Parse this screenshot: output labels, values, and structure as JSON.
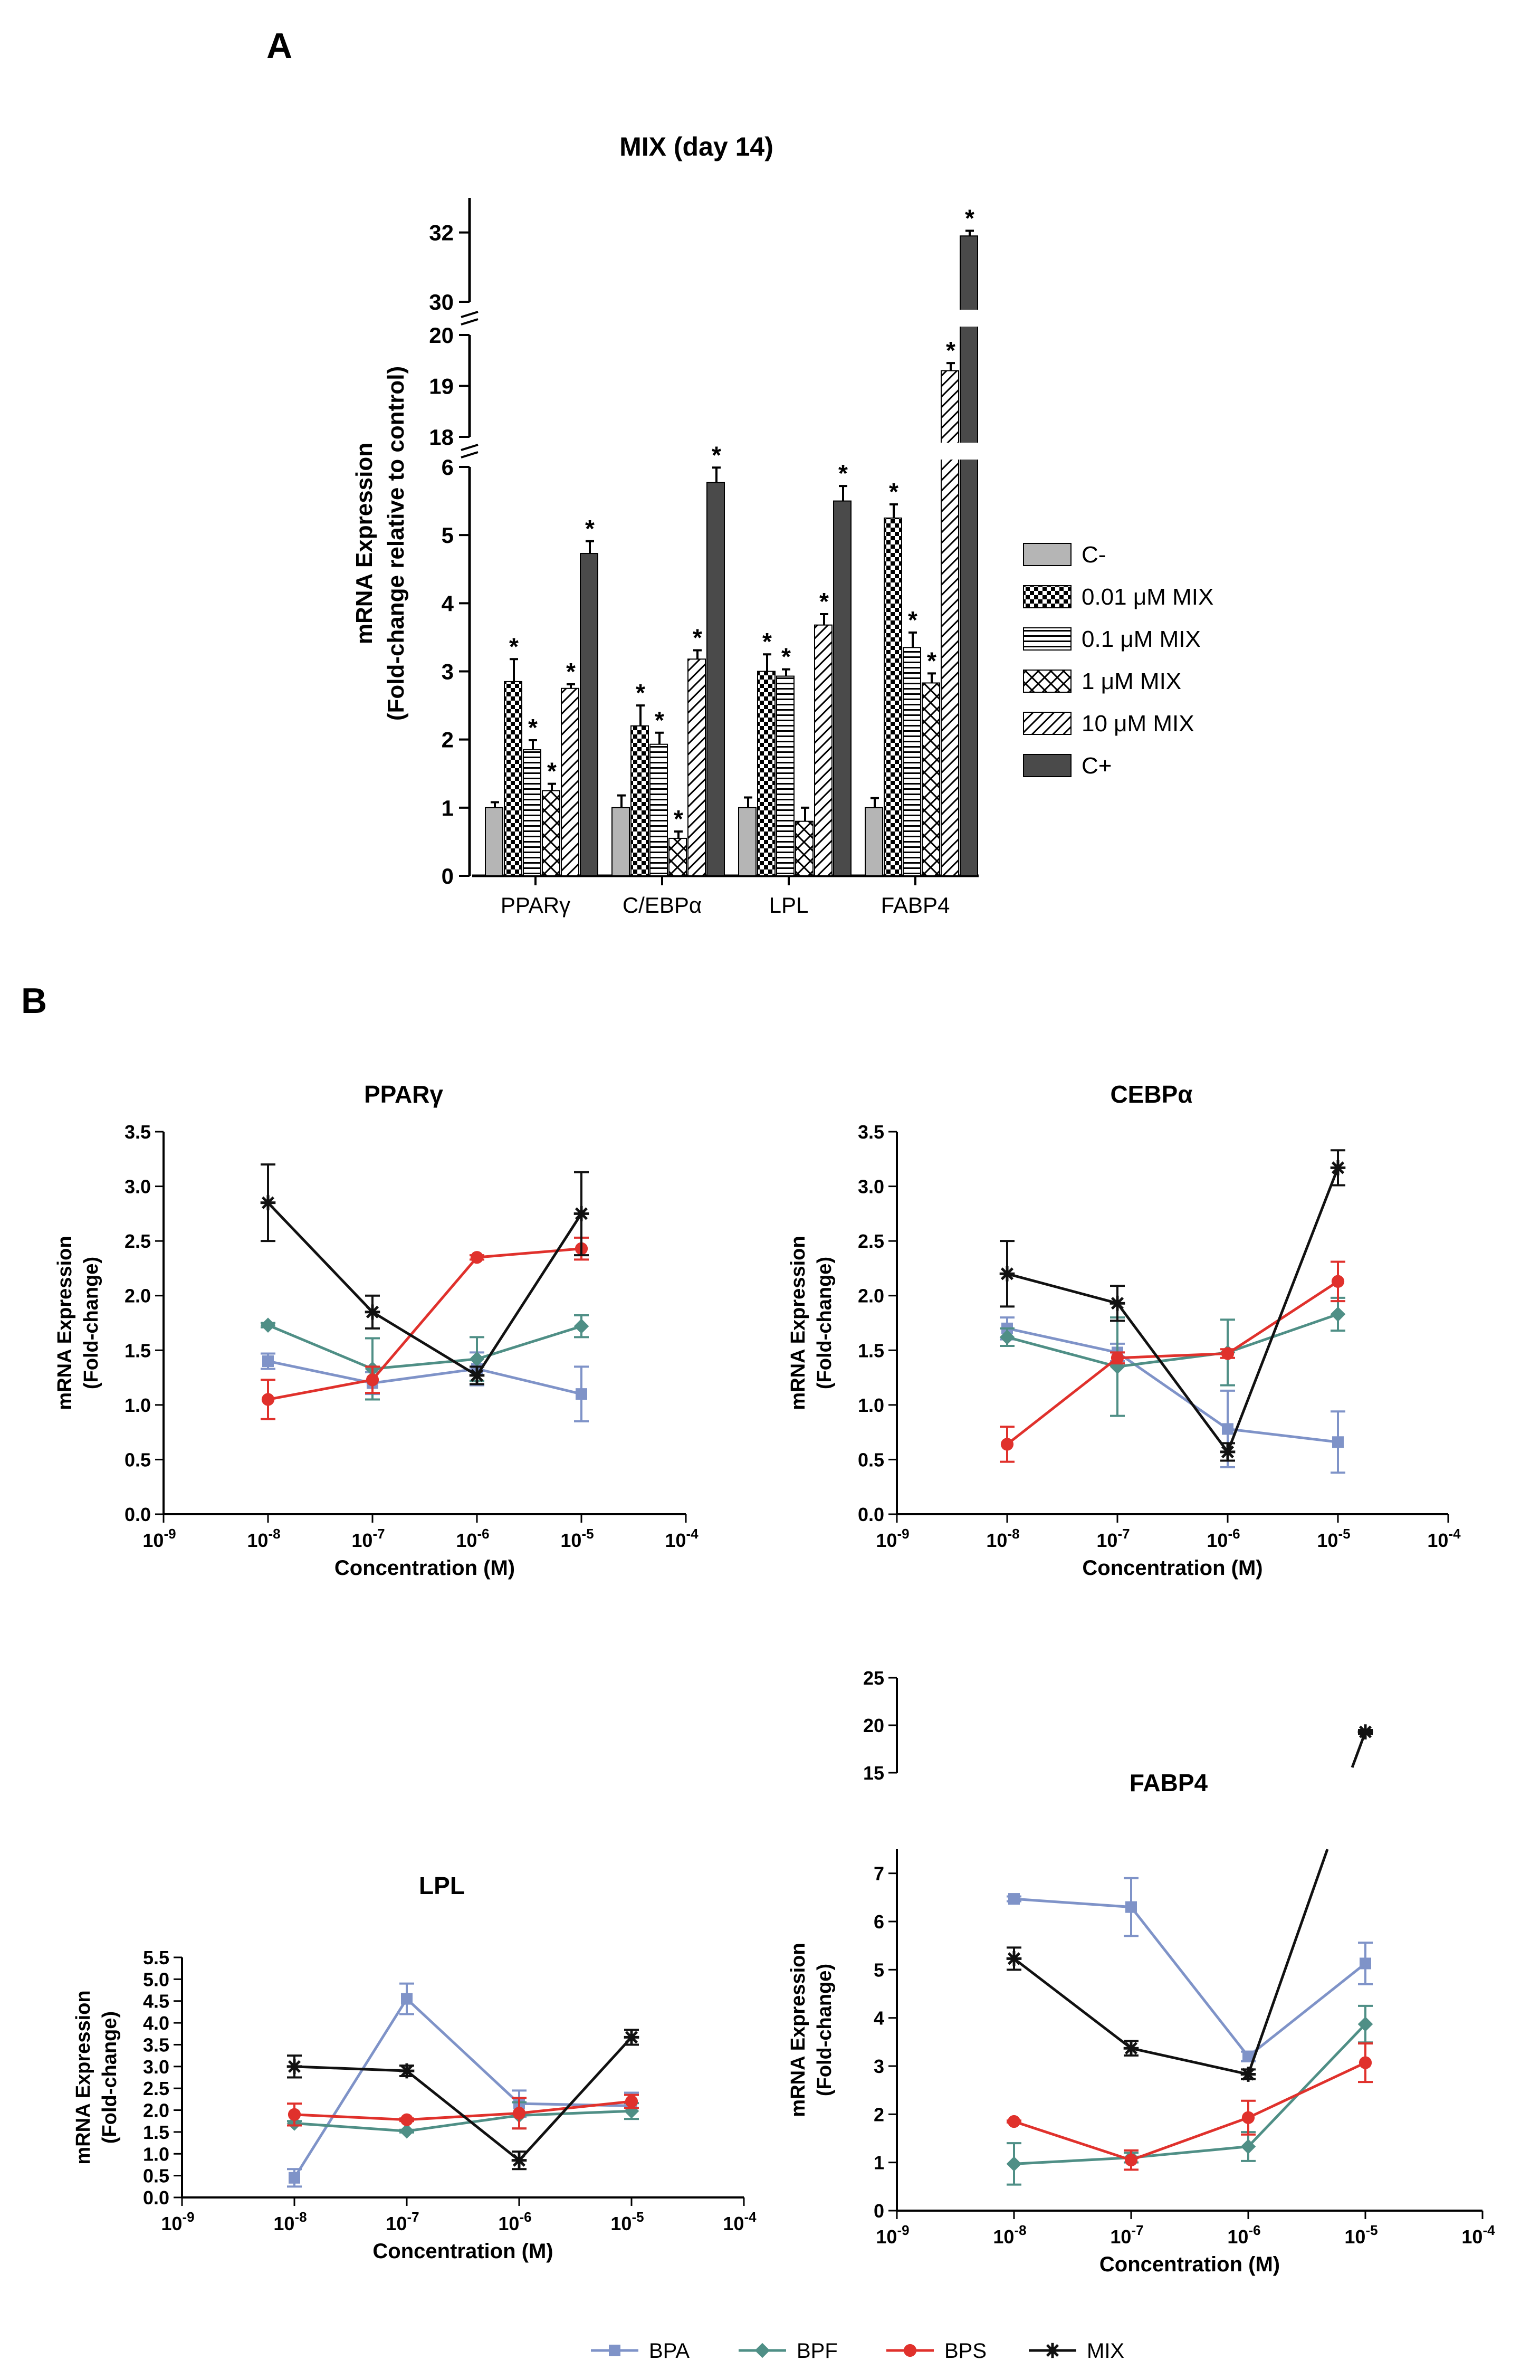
{
  "figure": {
    "panel_a_label": "A",
    "panel_b_label": "B"
  },
  "colors": {
    "BPA": "#7f93c8",
    "BPF": "#4f8f86",
    "BPS": "#e0312c",
    "MIX": "#111111",
    "c_minus": "#b5b5b5",
    "c_plus": "#4a4a4a"
  },
  "chart_data": [
    {
      "type": "bar",
      "title": "MIX (day 14)",
      "ylabel_line1": "mRNA Expression",
      "ylabel_line2": "(Fold-change relative to control)",
      "categories": [
        "PPARγ",
        "C/EBPα",
        "LPL",
        "FABP4"
      ],
      "y_segments": [
        {
          "range": [
            0,
            6
          ],
          "ticks": [
            "0",
            "1",
            "2",
            "3",
            "4",
            "5",
            "6"
          ]
        },
        {
          "range": [
            18,
            20
          ],
          "ticks": [
            "18",
            "19",
            "20"
          ]
        },
        {
          "range": [
            30,
            33
          ],
          "ticks": [
            "30",
            "32"
          ]
        }
      ],
      "series": [
        {
          "name": "C-",
          "values": [
            1.0,
            1.0,
            1.0,
            1.0
          ],
          "errors": [
            0.08,
            0.18,
            0.15,
            0.14
          ],
          "sig": [
            false,
            false,
            false,
            false
          ]
        },
        {
          "name": "0.01 μM MIX",
          "values": [
            2.85,
            2.2,
            3.0,
            5.25
          ],
          "errors": [
            0.33,
            0.3,
            0.25,
            0.2
          ],
          "sig": [
            true,
            true,
            true,
            true
          ]
        },
        {
          "name": "0.1 μM MIX",
          "values": [
            1.85,
            1.93,
            2.93,
            3.35
          ],
          "errors": [
            0.14,
            0.17,
            0.1,
            0.22
          ],
          "sig": [
            true,
            true,
            true,
            true
          ]
        },
        {
          "name": "1 μM MIX",
          "values": [
            1.25,
            0.55,
            0.8,
            2.83
          ],
          "errors": [
            0.1,
            0.1,
            0.2,
            0.14
          ],
          "sig": [
            true,
            true,
            false,
            true
          ]
        },
        {
          "name": "10 μM MIX",
          "values": [
            2.75,
            3.18,
            3.68,
            19.3
          ],
          "errors": [
            0.06,
            0.13,
            0.16,
            0.15
          ],
          "sig": [
            true,
            true,
            true,
            true
          ]
        },
        {
          "name": "C+",
          "values": [
            4.73,
            5.77,
            5.5,
            31.9
          ],
          "errors": [
            0.18,
            0.22,
            0.22,
            0.15
          ],
          "sig": [
            true,
            true,
            true,
            true
          ]
        }
      ],
      "significance_marker": "*"
    },
    {
      "type": "line",
      "title": "PPARγ",
      "ylabel_line1": "mRNA Expression",
      "ylabel_line2": "(Fold-change)",
      "xlabel": "Concentration (M)",
      "x_exponents": [
        -9,
        -8,
        -7,
        -6,
        -5,
        -4
      ],
      "ylim": [
        0,
        3.5
      ],
      "y_ticks": [
        "0.0",
        "0.5",
        "1.0",
        "1.5",
        "2.0",
        "2.5",
        "3.0",
        "3.5"
      ],
      "x": [
        -8,
        -7,
        -6,
        -5
      ],
      "series": [
        {
          "name": "BPA",
          "values": [
            1.4,
            1.2,
            1.33,
            1.1
          ],
          "errors": [
            0.07,
            0.1,
            0.15,
            0.25
          ]
        },
        {
          "name": "BPF",
          "values": [
            1.73,
            1.33,
            1.42,
            1.72
          ],
          "errors": [
            0.02,
            0.28,
            0.2,
            0.1
          ]
        },
        {
          "name": "BPS",
          "values": [
            1.05,
            1.23,
            2.35,
            2.43
          ],
          "errors": [
            0.18,
            0.12,
            0.02,
            0.1
          ]
        },
        {
          "name": "MIX",
          "values": [
            2.85,
            1.85,
            1.27,
            2.75
          ],
          "errors": [
            0.35,
            0.15,
            0.08,
            0.38
          ]
        }
      ]
    },
    {
      "type": "line",
      "title": "CEBPα",
      "ylabel_line1": "mRNA Expression",
      "ylabel_line2": "(Fold-change)",
      "xlabel": "Concentration (M)",
      "x_exponents": [
        -9,
        -8,
        -7,
        -6,
        -5,
        -4
      ],
      "ylim": [
        0,
        3.5
      ],
      "y_ticks": [
        "0.0",
        "0.5",
        "1.0",
        "1.5",
        "2.0",
        "2.5",
        "3.0",
        "3.5"
      ],
      "x": [
        -8,
        -7,
        -6,
        -5
      ],
      "series": [
        {
          "name": "BPA",
          "values": [
            1.7,
            1.48,
            0.78,
            0.66
          ],
          "errors": [
            0.1,
            0.08,
            0.35,
            0.28
          ]
        },
        {
          "name": "BPF",
          "values": [
            1.62,
            1.35,
            1.48,
            1.83
          ],
          "errors": [
            0.08,
            0.45,
            0.3,
            0.15
          ]
        },
        {
          "name": "BPS",
          "values": [
            0.64,
            1.43,
            1.47,
            2.13
          ],
          "errors": [
            0.16,
            0.05,
            0.04,
            0.18
          ]
        },
        {
          "name": "MIX",
          "values": [
            2.2,
            1.93,
            0.57,
            3.17
          ],
          "errors": [
            0.3,
            0.16,
            0.08,
            0.16
          ]
        }
      ]
    },
    {
      "type": "line",
      "title": "LPL",
      "ylabel_line1": "mRNA Expression",
      "ylabel_line2": "(Fold-change)",
      "xlabel": "Concentration (M)",
      "x_exponents": [
        -9,
        -8,
        -7,
        -6,
        -5,
        -4
      ],
      "ylim": [
        0,
        5.5
      ],
      "y_ticks": [
        "0.0",
        "0.5",
        "1.0",
        "1.5",
        "2.0",
        "2.5",
        "3.0",
        "3.5",
        "4.0",
        "4.5",
        "5.0",
        "5.5"
      ],
      "x": [
        -8,
        -7,
        -6,
        -5
      ],
      "series": [
        {
          "name": "BPA",
          "values": [
            0.45,
            4.55,
            2.15,
            2.1
          ],
          "errors": [
            0.2,
            0.35,
            0.3,
            0.3
          ]
        },
        {
          "name": "BPF",
          "values": [
            1.7,
            1.52,
            1.88,
            1.98
          ],
          "errors": [
            0.05,
            0.03,
            0.3,
            0.18
          ]
        },
        {
          "name": "BPS",
          "values": [
            1.9,
            1.78,
            1.93,
            2.2
          ],
          "errors": [
            0.25,
            0.03,
            0.35,
            0.15
          ]
        },
        {
          "name": "MIX",
          "values": [
            3.0,
            2.9,
            0.85,
            3.67
          ],
          "errors": [
            0.25,
            0.12,
            0.2,
            0.17
          ]
        }
      ]
    },
    {
      "type": "line",
      "title": "FABP4",
      "ylabel_line1": "mRNA Expression",
      "ylabel_line2": "(Fold-change)",
      "xlabel": "Concentration (M)",
      "x_exponents": [
        -9,
        -8,
        -7,
        -6,
        -5,
        -4
      ],
      "y_segments": [
        {
          "range": [
            0,
            7.5
          ],
          "ticks": [
            "0",
            "1",
            "2",
            "3",
            "4",
            "5",
            "6",
            "7"
          ]
        },
        {
          "range": [
            15,
            25
          ],
          "ticks": [
            "15",
            "20",
            "25"
          ]
        }
      ],
      "x": [
        -8,
        -7,
        -6,
        -5
      ],
      "series": [
        {
          "name": "BPA",
          "values": [
            6.47,
            6.3,
            3.2,
            5.13
          ],
          "errors": [
            0.05,
            0.6,
            0.1,
            0.43
          ]
        },
        {
          "name": "BPF",
          "values": [
            0.97,
            1.1,
            1.33,
            3.87
          ],
          "errors": [
            0.43,
            0.1,
            0.3,
            0.38
          ]
        },
        {
          "name": "BPS",
          "values": [
            1.85,
            1.05,
            1.93,
            3.07
          ],
          "errors": [
            0.02,
            0.2,
            0.35,
            0.4
          ]
        },
        {
          "name": "MIX",
          "values": [
            5.23,
            3.37,
            2.83,
            19.3
          ],
          "errors": [
            0.23,
            0.15,
            0.1,
            0.2
          ]
        }
      ]
    }
  ],
  "legend_b": [
    "BPA",
    "BPF",
    "BPS",
    "MIX"
  ]
}
